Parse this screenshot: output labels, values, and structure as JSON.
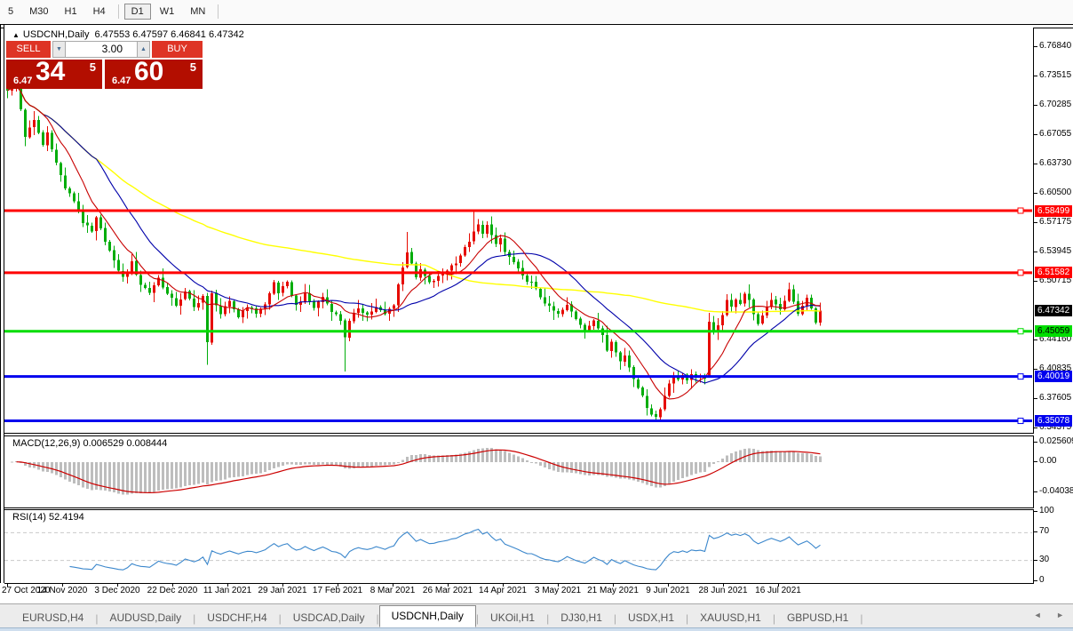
{
  "toolbar": {
    "timeframes": [
      "5",
      "M30",
      "H1",
      "H4",
      "D1",
      "W1",
      "MN"
    ],
    "active_timeframe": "D1"
  },
  "chart": {
    "symbol_header": {
      "collapse_glyph": "▲",
      "symbol": "USDCNH,Daily",
      "ohlc": "6.47553 6.47597 6.46841 6.47342"
    },
    "trade_panel": {
      "sell_label": "SELL",
      "buy_label": "BUY",
      "volume": "3.00",
      "spin_down_glyph": "▼",
      "spin_up_glyph": "▲",
      "sell_price_small": "6.47",
      "sell_price_big": "34",
      "sell_price_sup": "5",
      "buy_price_small": "6.47",
      "buy_price_big": "60",
      "buy_price_sup": "5"
    },
    "price_axis": {
      "ticks": [
        "6.76840",
        "6.73515",
        "6.70285",
        "6.67055",
        "6.63730",
        "6.60500",
        "6.57175",
        "6.53945",
        "6.50715",
        "6.44160",
        "6.40835",
        "6.37605",
        "6.34375"
      ],
      "highlighted": [
        {
          "label": "6.58499",
          "bg": "#ff0000",
          "fg": "#ffffff"
        },
        {
          "label": "6.51582",
          "bg": "#ff0000",
          "fg": "#ffffff"
        },
        {
          "label": "6.47342",
          "bg": "#000000",
          "fg": "#ffffff"
        },
        {
          "label": "6.45059",
          "bg": "#00dd00",
          "fg": "#000000"
        },
        {
          "label": "6.40019",
          "bg": "#0000ee",
          "fg": "#ffffff"
        },
        {
          "label": "6.35078",
          "bg": "#0000ee",
          "fg": "#ffffff"
        }
      ]
    },
    "date_axis": [
      "27 Oct 2020",
      "14 Nov 2020",
      "3 Dec 2020",
      "22 Dec 2020",
      "11 Jan 2021",
      "29 Jan 2021",
      "17 Feb 2021",
      "8 Mar 2021",
      "26 Mar 2021",
      "14 Apr 2021",
      "3 May 2021",
      "21 May 2021",
      "9 Jun 2021",
      "28 Jun 2021",
      "16 Jul 2021"
    ]
  },
  "macd": {
    "label": "MACD(12,26,9) 0.006529 0.008444",
    "axis": [
      "0.025609",
      "0.00",
      "-0.04038"
    ]
  },
  "rsi": {
    "label": "RSI(14) 52.4194",
    "axis": [
      "100",
      "70",
      "30",
      "0"
    ]
  },
  "tabs": {
    "items": [
      "EURUSD,H4",
      "AUDUSD,Daily",
      "USDCHF,H4",
      "USDCAD,Daily",
      "USDCNH,Daily",
      "UKOil,H1",
      "DJ30,H1",
      "USDX,H1",
      "XAUUSD,H1",
      "GBPUSD,H1"
    ],
    "active_index": 4,
    "scroll_left_glyph": "◄",
    "scroll_right_glyph": "►"
  },
  "chart_data": {
    "type": "candlestick",
    "symbol": "USDCNH",
    "timeframe": "Daily",
    "n_bars": 184,
    "visible_range": {
      "first_date": "27 Oct 2020",
      "last_date": "16 Jul 2021",
      "price_top": 6.787,
      "price_bottom": 6.341
    },
    "current_price": 6.47342,
    "hlines": [
      {
        "price": 6.58499,
        "color": "#ff0000"
      },
      {
        "price": 6.51582,
        "color": "#ff0000"
      },
      {
        "price": 6.45059,
        "color": "#00dd00"
      },
      {
        "price": 6.40019,
        "color": "#0000ee"
      },
      {
        "price": 6.35078,
        "color": "#0000ee"
      }
    ],
    "colors": {
      "up": "#e60b00",
      "down": "#00ad0b",
      "ma_fast": "#c80000",
      "ma_mid": "#0000aa",
      "ma_slow": "#ffff00",
      "macd_hist": "#bdbdbd",
      "macd_signal": "#cc0000",
      "rsi": "#3b87cc",
      "levels": "#c9c9c9"
    },
    "ma_windows": {
      "fast": 9,
      "mid": 21,
      "slow": 95
    },
    "macd_params": [
      12,
      26,
      9
    ],
    "rsi_period": 14,
    "rsi_levels": [
      70,
      30
    ],
    "price_path": [
      [
        0,
        6.72
      ],
      [
        2,
        6.728
      ],
      [
        4,
        6.668
      ],
      [
        6,
        6.685
      ],
      [
        8,
        6.658
      ],
      [
        9,
        6.672
      ],
      [
        11,
        6.638
      ],
      [
        13,
        6.61
      ],
      [
        15,
        6.596
      ],
      [
        17,
        6.572
      ],
      [
        19,
        6.561
      ],
      [
        20,
        6.576
      ],
      [
        22,
        6.552
      ],
      [
        24,
        6.528
      ],
      [
        26,
        6.51
      ],
      [
        28,
        6.527
      ],
      [
        30,
        6.503
      ],
      [
        32,
        6.494
      ],
      [
        34,
        6.51
      ],
      [
        36,
        6.492
      ],
      [
        38,
        6.48
      ],
      [
        40,
        6.494
      ],
      [
        42,
        6.477
      ],
      [
        44,
        6.49
      ],
      [
        45,
        6.437
      ],
      [
        46,
        6.492
      ],
      [
        48,
        6.47
      ],
      [
        50,
        6.483
      ],
      [
        52,
        6.467
      ],
      [
        54,
        6.479
      ],
      [
        56,
        6.471
      ],
      [
        58,
        6.48
      ],
      [
        60,
        6.505
      ],
      [
        61,
        6.494
      ],
      [
        63,
        6.504
      ],
      [
        65,
        6.479
      ],
      [
        67,
        6.491
      ],
      [
        69,
        6.477
      ],
      [
        71,
        6.489
      ],
      [
        73,
        6.474
      ],
      [
        75,
        6.463
      ],
      [
        76,
        6.445
      ],
      [
        77,
        6.461
      ],
      [
        79,
        6.477
      ],
      [
        81,
        6.469
      ],
      [
        83,
        6.477
      ],
      [
        85,
        6.469
      ],
      [
        87,
        6.481
      ],
      [
        88,
        6.503
      ],
      [
        90,
        6.54
      ],
      [
        91,
        6.527
      ],
      [
        92,
        6.509
      ],
      [
        93,
        6.519
      ],
      [
        95,
        6.504
      ],
      [
        97,
        6.511
      ],
      [
        99,
        6.519
      ],
      [
        101,
        6.528
      ],
      [
        103,
        6.543
      ],
      [
        105,
        6.56
      ],
      [
        106,
        6.569
      ],
      [
        107,
        6.558
      ],
      [
        108,
        6.571
      ],
      [
        109,
        6.557
      ],
      [
        110,
        6.546
      ],
      [
        111,
        6.554
      ],
      [
        112,
        6.539
      ],
      [
        114,
        6.527
      ],
      [
        116,
        6.511
      ],
      [
        118,
        6.504
      ],
      [
        120,
        6.489
      ],
      [
        122,
        6.477
      ],
      [
        124,
        6.469
      ],
      [
        126,
        6.479
      ],
      [
        128,
        6.465
      ],
      [
        130,
        6.453
      ],
      [
        132,
        6.461
      ],
      [
        134,
        6.447
      ],
      [
        135,
        6.431
      ],
      [
        136,
        6.441
      ],
      [
        137,
        6.427
      ],
      [
        138,
        6.417
      ],
      [
        139,
        6.424
      ],
      [
        140,
        6.411
      ],
      [
        141,
        6.399
      ],
      [
        142,
        6.389
      ],
      [
        143,
        6.377
      ],
      [
        144,
        6.367
      ],
      [
        145,
        6.359
      ],
      [
        146,
        6.355
      ],
      [
        147,
        6.364
      ],
      [
        148,
        6.379
      ],
      [
        149,
        6.394
      ],
      [
        150,
        6.401
      ],
      [
        151,
        6.395
      ],
      [
        152,
        6.402
      ],
      [
        153,
        6.397
      ],
      [
        154,
        6.404
      ],
      [
        155,
        6.398
      ],
      [
        156,
        6.402
      ],
      [
        157,
        6.399
      ],
      [
        158,
        6.461
      ],
      [
        159,
        6.452
      ],
      [
        160,
        6.457
      ],
      [
        161,
        6.469
      ],
      [
        162,
        6.487
      ],
      [
        163,
        6.477
      ],
      [
        164,
        6.487
      ],
      [
        165,
        6.481
      ],
      [
        166,
        6.491
      ],
      [
        167,
        6.484
      ],
      [
        168,
        6.471
      ],
      [
        169,
        6.457
      ],
      [
        170,
        6.467
      ],
      [
        171,
        6.479
      ],
      [
        172,
        6.487
      ],
      [
        173,
        6.481
      ],
      [
        174,
        6.474
      ],
      [
        175,
        6.486
      ],
      [
        176,
        6.496
      ],
      [
        177,
        6.482
      ],
      [
        178,
        6.471
      ],
      [
        179,
        6.479
      ],
      [
        180,
        6.489
      ],
      [
        181,
        6.477
      ],
      [
        182,
        6.461
      ],
      [
        183,
        6.4734
      ]
    ],
    "overrides": {
      "45": {
        "low": 6.413
      },
      "76": {
        "low": 6.406
      },
      "90": {
        "high": 6.561
      },
      "105": {
        "high": 6.585
      },
      "146": {
        "low": 6.351
      },
      "158": {
        "open": 6.401
      },
      "176": {
        "high": 6.505
      }
    }
  }
}
